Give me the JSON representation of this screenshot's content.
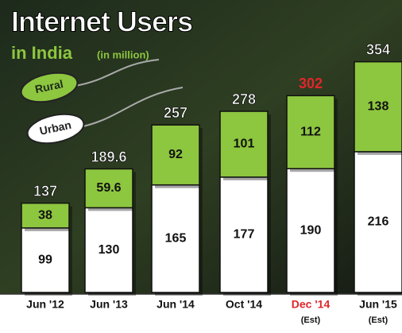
{
  "chart_data": {
    "type": "stacked-bar",
    "title": "Internet Users",
    "subtitle": "in India",
    "unit": "(in million)",
    "categories": [
      "Jun '12",
      "Jun '13",
      "Jun '14",
      "Oct '14",
      "Dec '14",
      "Jun '15"
    ],
    "sublabels": [
      null,
      null,
      null,
      null,
      "(Est)",
      "(Est)"
    ],
    "series": [
      {
        "name": "Urban",
        "color": "#ffffff",
        "values": [
          99,
          130,
          165,
          177,
          190,
          216
        ]
      },
      {
        "name": "Rural",
        "color": "#8dc63f",
        "values": [
          38,
          59.6,
          92,
          101,
          112,
          138
        ]
      }
    ],
    "totals": [
      137,
      189.6,
      257,
      278,
      302,
      354
    ],
    "highlight": {
      "index": 4,
      "color": "#e0262b"
    }
  }
}
